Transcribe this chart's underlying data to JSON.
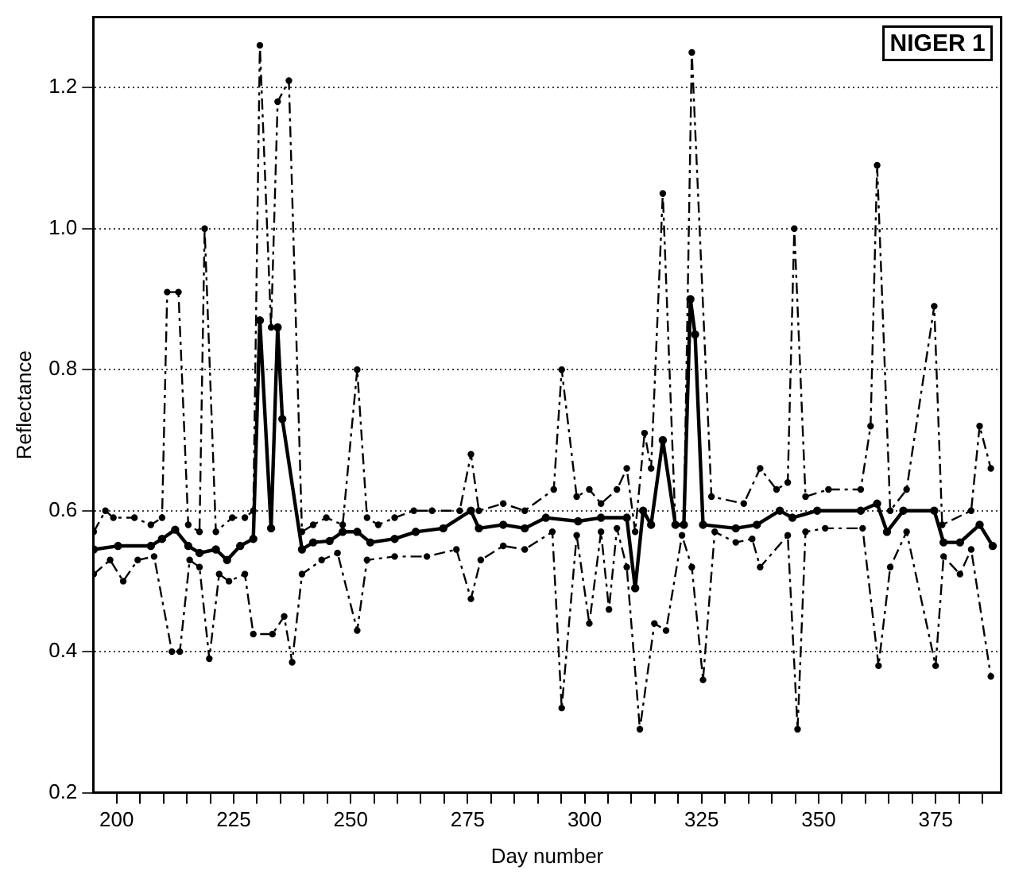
{
  "chart_data": {
    "type": "line",
    "title": "NIGER 1",
    "xlabel": "Day number",
    "ylabel": "Reflectance",
    "xlim": [
      195,
      389
    ],
    "xticks": [
      200,
      {
        "value": 205,
        "label": null
      },
      {
        "value": 210,
        "label": null
      },
      {
        "value": 215,
        "label": null
      },
      {
        "value": 220,
        "label": null
      },
      225,
      {
        "value": 230,
        "label": null
      },
      {
        "value": 235,
        "label": null
      },
      {
        "value": 240,
        "label": null
      },
      {
        "value": 245,
        "label": null
      },
      250,
      {
        "value": 255,
        "label": null
      },
      {
        "value": 260,
        "label": null
      },
      {
        "value": 265,
        "label": null
      },
      {
        "value": 270,
        "label": null
      },
      275,
      {
        "value": 280,
        "label": null
      },
      {
        "value": 285,
        "label": null
      },
      {
        "value": 290,
        "label": null
      },
      {
        "value": 295,
        "label": null
      },
      300,
      {
        "value": 305,
        "label": null
      },
      {
        "value": 310,
        "label": null
      },
      {
        "value": 315,
        "label": null
      },
      {
        "value": 320,
        "label": null
      },
      325,
      {
        "value": 330,
        "label": null
      },
      {
        "value": 335,
        "label": null
      },
      {
        "value": 340,
        "label": null
      },
      {
        "value": 345,
        "label": null
      },
      350,
      {
        "value": 355,
        "label": null
      },
      {
        "value": 360,
        "label": null
      },
      {
        "value": 365,
        "label": null
      },
      {
        "value": 370,
        "label": null
      },
      375,
      {
        "value": 380,
        "label": null
      },
      {
        "value": 385,
        "label": null
      }
    ],
    "ylim": [
      0.2,
      1.3
    ],
    "yticks": [
      0.2,
      0.4,
      0.6,
      {
        "value": 0.8,
        "label": "0.8"
      },
      {
        "value": 1,
        "label": "1.0"
      },
      1.2
    ],
    "grid": "y",
    "legend": false,
    "marker": "circle",
    "series": [
      {
        "type": "line",
        "color": "#000000",
        "line_style": "dashed",
        "x": [
          195.1,
          197.6,
          199.3,
          203.8,
          207.3,
          209.7,
          210.8,
          213.2,
          215.3,
          217.7,
          218.8,
          221.2,
          224.7,
          227.4,
          229.2,
          230.6,
          233,
          234.4,
          236.8,
          239.6,
          242,
          244.8,
          248.3,
          251.4,
          253.5,
          255.9,
          259.4,
          263.5,
          267.4,
          273.3,
          275.7,
          277.4,
          282.6,
          287.2,
          293.4,
          295.1,
          298.3,
          301,
          303.5,
          306.9,
          309,
          310.8,
          312.8,
          314.2,
          316.7,
          319.4,
          321.2,
          322.9,
          327.1,
          334,
          337.5,
          341,
          343.4,
          344.8,
          347.2,
          352.1,
          359,
          361.1,
          362.5,
          365.3,
          368.8,
          374.7,
          376.4,
          382.6,
          384.4,
          386.8
        ],
        "values": [
          0.57,
          0.6,
          0.59,
          0.59,
          0.58,
          0.59,
          0.91,
          0.91,
          0.58,
          0.57,
          1.0,
          0.57,
          0.59,
          0.59,
          0.6,
          1.26,
          0.86,
          1.18,
          1.21,
          0.57,
          0.58,
          0.59,
          0.58,
          0.8,
          0.59,
          0.58,
          0.59,
          0.6,
          0.6,
          0.6,
          0.68,
          0.6,
          0.61,
          0.6,
          0.63,
          0.8,
          0.62,
          0.63,
          0.61,
          0.63,
          0.66,
          0.57,
          0.71,
          0.66,
          1.05,
          0.58,
          0.58,
          1.25,
          0.62,
          0.61,
          0.66,
          0.63,
          0.64,
          1.0,
          0.62,
          0.63,
          0.63,
          0.72,
          1.09,
          0.6,
          0.63,
          0.89,
          0.58,
          0.6,
          0.72,
          0.66
        ]
      },
      {
        "type": "line",
        "color": "#000000",
        "line_style": "solid",
        "x": [
          195.1,
          200.3,
          207.3,
          209.7,
          212.5,
          215.3,
          217.7,
          221.2,
          223.6,
          226.4,
          229.2,
          230.6,
          233,
          234.4,
          235.4,
          239.6,
          242,
          245.5,
          248.3,
          251.4,
          254.2,
          259.4,
          263.9,
          269.8,
          275.7,
          277.4,
          282.6,
          287.2,
          291.7,
          298.6,
          303.5,
          309,
          310.8,
          312.5,
          314.2,
          316.7,
          319.4,
          321.2,
          322.6,
          323.6,
          325.3,
          332.3,
          336.8,
          341.7,
          344.4,
          349.7,
          359,
          362.5,
          364.6,
          368.1,
          374.7,
          376.7,
          380.2,
          384.4,
          387.2
        ],
        "values": [
          0.545,
          0.55,
          0.55,
          0.56,
          0.573,
          0.55,
          0.54,
          0.545,
          0.53,
          0.55,
          0.56,
          0.87,
          0.575,
          0.86,
          0.73,
          0.545,
          0.555,
          0.557,
          0.57,
          0.57,
          0.555,
          0.56,
          0.57,
          0.575,
          0.6,
          0.575,
          0.58,
          0.575,
          0.59,
          0.585,
          0.59,
          0.59,
          0.49,
          0.6,
          0.58,
          0.7,
          0.58,
          0.58,
          0.9,
          0.85,
          0.58,
          0.575,
          0.58,
          0.6,
          0.59,
          0.6,
          0.6,
          0.61,
          0.57,
          0.6,
          0.6,
          0.555,
          0.555,
          0.58,
          0.55
        ]
      },
      {
        "type": "line",
        "color": "#000000",
        "line_style": "dashed",
        "x": [
          195.1,
          198.6,
          201.4,
          204.5,
          208,
          211.8,
          213.5,
          215.6,
          217.7,
          219.8,
          221.9,
          224,
          227.4,
          229.2,
          233.3,
          235.8,
          237.5,
          239.6,
          243.8,
          247.2,
          251.4,
          253.5,
          259.4,
          266.3,
          272.6,
          275.7,
          277.8,
          282.6,
          287.2,
          293.1,
          295.1,
          298.3,
          301,
          303.5,
          305.2,
          306.9,
          309,
          311.8,
          314.9,
          317.4,
          320.8,
          322.9,
          325.3,
          327.8,
          332.3,
          335.8,
          337.5,
          343.4,
          345.5,
          347.2,
          351.4,
          359.4,
          362.8,
          365.3,
          368.8,
          375,
          376.7,
          380.2,
          382.6,
          386.8
        ],
        "values": [
          0.51,
          0.53,
          0.5,
          0.53,
          0.535,
          0.4,
          0.4,
          0.53,
          0.52,
          0.39,
          0.51,
          0.5,
          0.51,
          0.425,
          0.425,
          0.45,
          0.385,
          0.51,
          0.53,
          0.54,
          0.43,
          0.53,
          0.535,
          0.535,
          0.545,
          0.475,
          0.53,
          0.55,
          0.545,
          0.57,
          0.32,
          0.565,
          0.44,
          0.57,
          0.46,
          0.575,
          0.52,
          0.29,
          0.44,
          0.43,
          0.565,
          0.52,
          0.36,
          0.57,
          0.555,
          0.56,
          0.52,
          0.565,
          0.29,
          0.57,
          0.575,
          0.575,
          0.38,
          0.52,
          0.57,
          0.38,
          0.535,
          0.51,
          0.545,
          0.365
        ]
      }
    ]
  }
}
